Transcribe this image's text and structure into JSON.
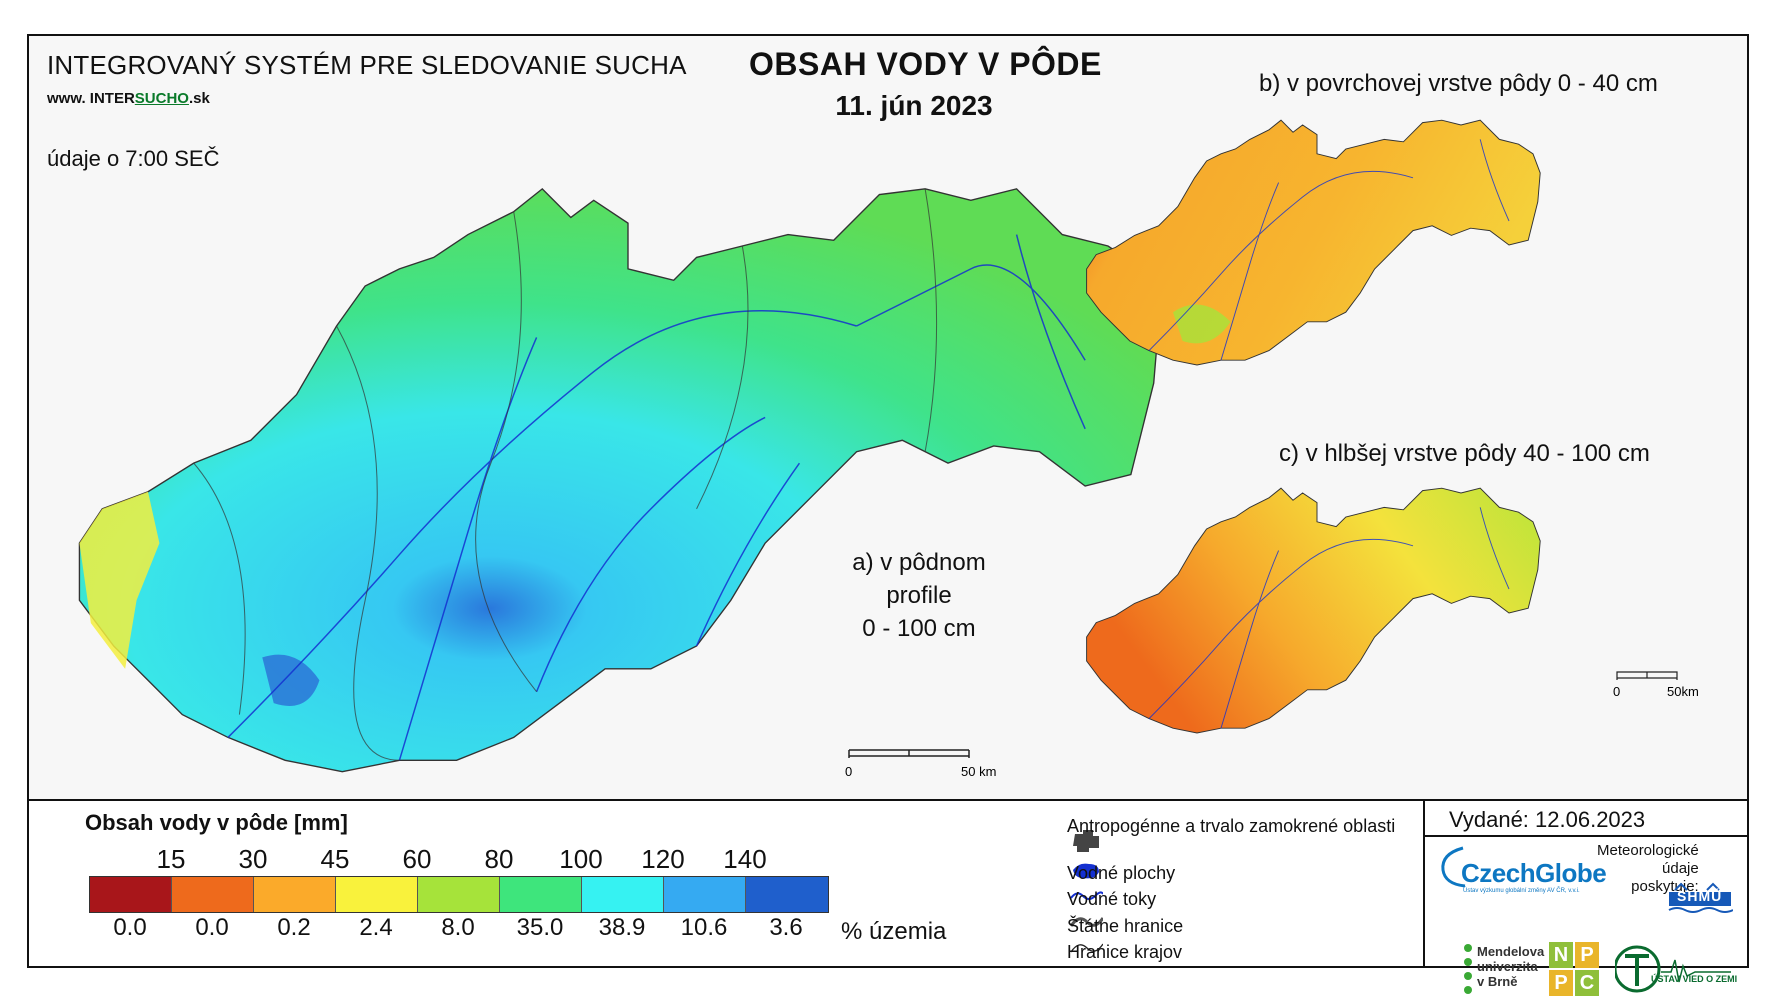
{
  "header": {
    "system_title": "INTEGROVANÝ SYSTÉM PRE SLEDOVANIE SUCHA",
    "web_prefix": "www. INTER",
    "web_mid": "SUCHO",
    "web_suffix": ".sk",
    "time_note": "údaje o 7:00 SEČ",
    "title": "OBSAH VODY V PÔDE",
    "date": "11. jún 2023"
  },
  "panels": {
    "a_label_line1": "a) v pôdnom profile",
    "a_label_line2": "0 - 100 cm",
    "b_label": "b) v povrchovej vrstve pôdy 0 - 40 cm",
    "c_label": "c) v hlbšej vrstve pôdy 40 - 100 cm",
    "main_scale": {
      "zero": "0",
      "end": "50 km"
    },
    "small_scale": {
      "zero": "0",
      "end": "50km"
    }
  },
  "legend": {
    "title": "Obsah vody v pôde  [mm]",
    "thresholds": [
      "15",
      "30",
      "45",
      "60",
      "80",
      "100",
      "120",
      "140"
    ],
    "colors": [
      "#a8161a",
      "#ee6a1c",
      "#fbaa2a",
      "#f9f23c",
      "#a6e33a",
      "#3ee57c",
      "#36f2f2",
      "#35aaf2",
      "#1f5fcc"
    ],
    "percentages": [
      "0.0",
      "0.0",
      "0.2",
      "2.4",
      "8.0",
      "35.0",
      "38.9",
      "10.6",
      "3.6"
    ],
    "percent_unit": "% územia"
  },
  "symbols": [
    {
      "label": "Antropogénne a trvalo zamokrené oblasti",
      "icon": "urban-area-icon"
    },
    {
      "label": "Vodné plochy",
      "icon": "water-body-icon"
    },
    {
      "label": "Vodné toky",
      "icon": "river-icon"
    },
    {
      "label": "Štátne hranice",
      "icon": "state-border-icon"
    },
    {
      "label": "Hranice krajov",
      "icon": "region-border-icon"
    }
  ],
  "footer": {
    "issued": "Vydané: 12.06.2023",
    "czechglobe": "CzechGlobe",
    "czechglobe_sub": "Ústav výzkumu globální změny AV ČR, v.v.i.",
    "meteo_line1": "Meteorologické",
    "meteo_line2": "údaje",
    "meteo_line3": "poskytuje:",
    "shmu": "SHMÚ",
    "mendel_line1": "Mendelova",
    "mendel_line2": "univerzita",
    "mendel_line3": "v Brně",
    "nppc": [
      "N",
      "P",
      "P",
      "C"
    ],
    "uvz": "ÚSTAV VIED O ZEMI"
  }
}
